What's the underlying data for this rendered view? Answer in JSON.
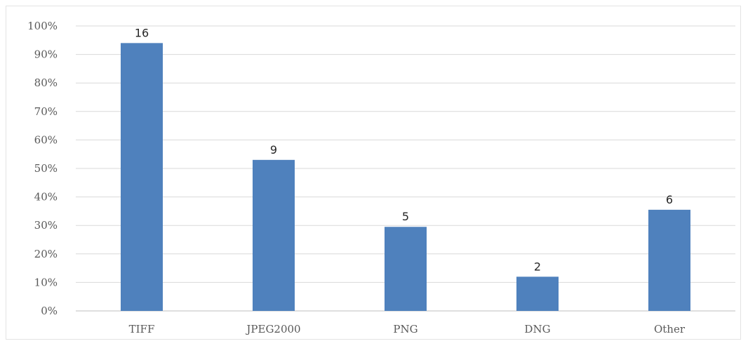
{
  "chart_data": {
    "type": "bar",
    "title": "",
    "xlabel": "",
    "ylabel": "",
    "categories": [
      "TIFF",
      "JPEG2000",
      "PNG",
      "DNG",
      "Other"
    ],
    "values": [
      94,
      53,
      29.5,
      12,
      35.5
    ],
    "data_labels": [
      "16",
      "9",
      "5",
      "2",
      "6"
    ],
    "ylim": [
      0,
      100
    ],
    "y_ticks": [
      "0%",
      "10%",
      "20%",
      "30%",
      "40%",
      "50%",
      "60%",
      "70%",
      "80%",
      "90%",
      "100%"
    ],
    "grid": true,
    "legend": "none",
    "bar_color": "#4f81bd",
    "grid_color": "#d9d9d9"
  }
}
